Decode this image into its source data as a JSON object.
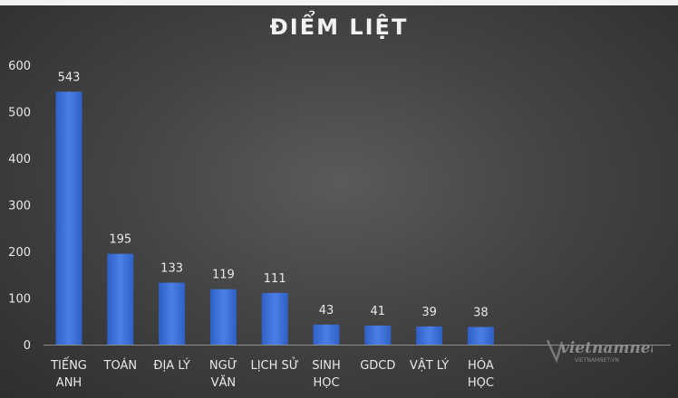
{
  "chart_data": {
    "type": "bar",
    "title": "ĐIỂM LIỆT",
    "xlabel": "",
    "ylabel": "",
    "categories": [
      [
        "TIẾNG",
        "ANH"
      ],
      [
        "TOÁN"
      ],
      [
        "ĐỊA LÝ"
      ],
      [
        "NGỮ",
        "VĂN"
      ],
      [
        "LỊCH SỬ"
      ],
      [
        "SINH",
        "HỌC"
      ],
      [
        "GDCD"
      ],
      [
        "VẬT LÝ"
      ],
      [
        "HÓA",
        "HỌC"
      ]
    ],
    "values": [
      543,
      195,
      133,
      119,
      111,
      43,
      41,
      39,
      38
    ],
    "ylim": [
      0,
      600
    ],
    "yticks": [
      0,
      100,
      200,
      300,
      400,
      500,
      600
    ],
    "grid": false,
    "legend": "none",
    "bar_color": "#3b6fd8"
  },
  "watermark": {
    "text": "vietnamnet",
    "subtext": "VIETNAMNET.VN"
  }
}
